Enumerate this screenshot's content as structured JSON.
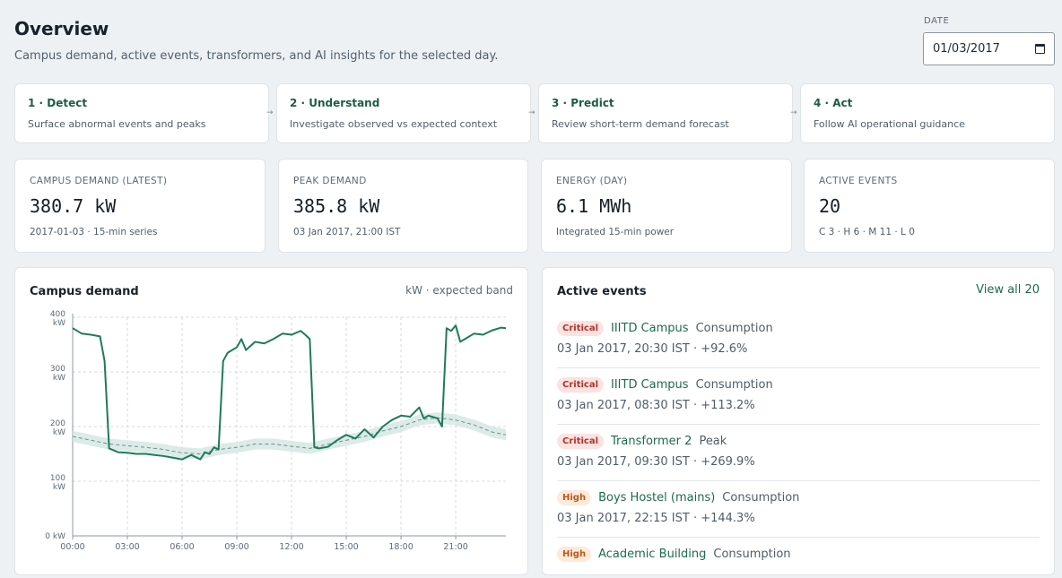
{
  "header": {
    "title": "Overview",
    "subtitle": "Campus demand, active events, transformers, and AI insights for the selected day.",
    "date_label": "DATE",
    "date_value": "01/03/2017"
  },
  "steps": [
    {
      "title": "1 · Detect",
      "desc": "Surface abnormal events and peaks"
    },
    {
      "title": "2 · Understand",
      "desc": "Investigate observed vs expected context"
    },
    {
      "title": "3 · Predict",
      "desc": "Review short-term demand forecast"
    },
    {
      "title": "4 · Act",
      "desc": "Follow AI operational guidance"
    }
  ],
  "step_arrow": "→",
  "kpis": [
    {
      "label": "CAMPUS DEMAND (LATEST)",
      "value": "380.7 kW",
      "sub": "2017-01-03 · 15-min series"
    },
    {
      "label": "PEAK DEMAND",
      "value": "385.8 kW",
      "sub": "03 Jan 2017, 21:00 IST"
    },
    {
      "label": "ENERGY (DAY)",
      "value": "6.1 MWh",
      "sub": "Integrated 15-min power"
    },
    {
      "label": "ACTIVE EVENTS",
      "value": "20",
      "sub": "C 3 · H 6 · M 11 · L 0"
    }
  ],
  "demand_panel": {
    "title": "Campus demand",
    "note": "kW · expected band"
  },
  "events_panel": {
    "title": "Active events",
    "view_all": "View all 20"
  },
  "events": [
    {
      "severity": "Critical",
      "name": "IIITD Campus",
      "kind": "Consumption",
      "detail": "03 Jan 2017, 20:30 IST · +92.6%"
    },
    {
      "severity": "Critical",
      "name": "IIITD Campus",
      "kind": "Consumption",
      "detail": "03 Jan 2017, 08:30 IST · +113.2%"
    },
    {
      "severity": "Critical",
      "name": "Transformer 2",
      "kind": "Peak",
      "detail": "03 Jan 2017, 09:30 IST · +269.9%"
    },
    {
      "severity": "High",
      "name": "Boys Hostel (mains)",
      "kind": "Consumption",
      "detail": "03 Jan 2017, 22:15 IST · +144.3%"
    },
    {
      "severity": "High",
      "name": "Academic Building",
      "kind": "Consumption",
      "detail": ""
    }
  ],
  "colors": {
    "accent": "#1d6b4e",
    "observed_line": "#1f7a5a",
    "band": "#d5e7e3",
    "critical": "#b3322c",
    "high": "#b5591a"
  },
  "chart_data": {
    "type": "line",
    "x_unit": "hours (00:00–24:00)",
    "x_ticks": [
      "00:00",
      "03:00",
      "06:00",
      "09:00",
      "12:00",
      "15:00",
      "18:00",
      "21:00"
    ],
    "y_ticks": [
      {
        "value": 0,
        "label": "0 kW"
      },
      {
        "value": 100,
        "label": "100 kW"
      },
      {
        "value": 200,
        "label": "200 kW"
      },
      {
        "value": 300,
        "label": "300 kW"
      },
      {
        "value": 400,
        "label": "400 kW"
      }
    ],
    "xlim": [
      0,
      23.75
    ],
    "ylim": [
      0,
      400
    ],
    "grid": true,
    "series": [
      {
        "name": "observed",
        "points": [
          [
            0,
            380
          ],
          [
            0.5,
            370
          ],
          [
            1,
            368
          ],
          [
            1.5,
            365
          ],
          [
            1.75,
            320
          ],
          [
            2,
            160
          ],
          [
            2.5,
            153
          ],
          [
            3,
            152
          ],
          [
            3.5,
            150
          ],
          [
            4,
            150
          ],
          [
            4.5,
            148
          ],
          [
            5,
            146
          ],
          [
            5.5,
            143
          ],
          [
            6,
            140
          ],
          [
            6.5,
            148
          ],
          [
            7,
            140
          ],
          [
            7.25,
            153
          ],
          [
            7.5,
            150
          ],
          [
            7.75,
            162
          ],
          [
            8,
            158
          ],
          [
            8.25,
            320
          ],
          [
            8.5,
            335
          ],
          [
            9,
            345
          ],
          [
            9.25,
            360
          ],
          [
            9.5,
            340
          ],
          [
            10,
            355
          ],
          [
            10.5,
            352
          ],
          [
            11,
            360
          ],
          [
            11.5,
            370
          ],
          [
            12,
            368
          ],
          [
            12.5,
            375
          ],
          [
            12.75,
            368
          ],
          [
            13,
            360
          ],
          [
            13.25,
            162
          ],
          [
            13.5,
            160
          ],
          [
            14,
            163
          ],
          [
            14.5,
            175
          ],
          [
            15,
            185
          ],
          [
            15.5,
            178
          ],
          [
            16,
            195
          ],
          [
            16.5,
            180
          ],
          [
            17,
            200
          ],
          [
            17.5,
            212
          ],
          [
            18,
            220
          ],
          [
            18.5,
            218
          ],
          [
            19,
            235
          ],
          [
            19.25,
            215
          ],
          [
            19.5,
            220
          ],
          [
            20,
            215
          ],
          [
            20.25,
            200
          ],
          [
            20.5,
            380
          ],
          [
            20.75,
            375
          ],
          [
            21,
            385
          ],
          [
            21.25,
            355
          ],
          [
            21.5,
            360
          ],
          [
            22,
            370
          ],
          [
            22.5,
            368
          ],
          [
            23,
            376
          ],
          [
            23.5,
            381
          ],
          [
            23.75,
            380
          ]
        ]
      },
      {
        "name": "expected",
        "points": [
          [
            0,
            182
          ],
          [
            1,
            175
          ],
          [
            2,
            168
          ],
          [
            3,
            165
          ],
          [
            4,
            162
          ],
          [
            5,
            158
          ],
          [
            6,
            152
          ],
          [
            7,
            150
          ],
          [
            8,
            158
          ],
          [
            9,
            162
          ],
          [
            10,
            168
          ],
          [
            11,
            168
          ],
          [
            12,
            164
          ],
          [
            13,
            160
          ],
          [
            14,
            168
          ],
          [
            15,
            175
          ],
          [
            16,
            182
          ],
          [
            17,
            192
          ],
          [
            18,
            200
          ],
          [
            19,
            212
          ],
          [
            20,
            216
          ],
          [
            21,
            212
          ],
          [
            22,
            203
          ],
          [
            23,
            190
          ],
          [
            23.75,
            185
          ]
        ]
      }
    ],
    "band_halfwidth": 10
  }
}
